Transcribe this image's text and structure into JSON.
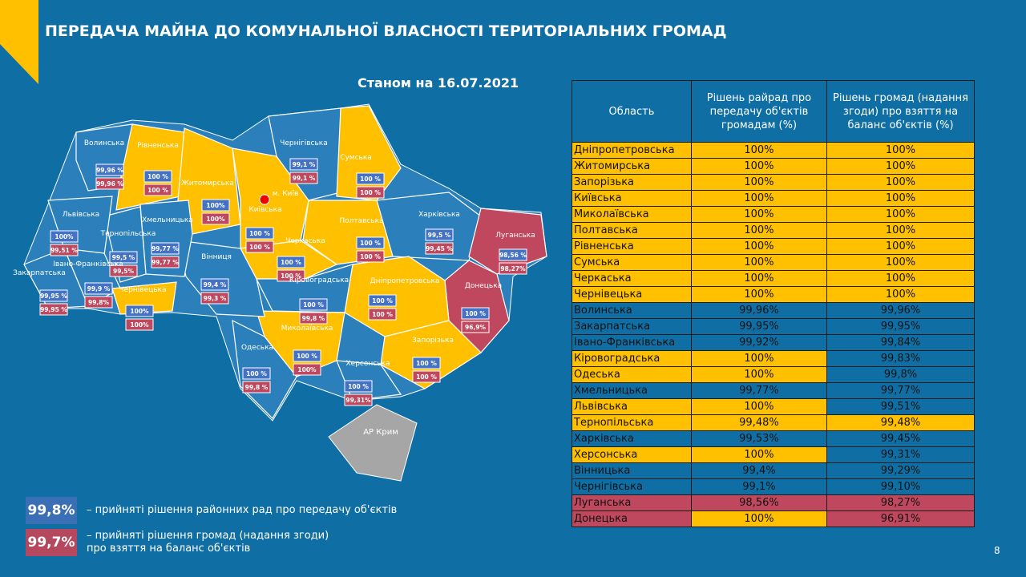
{
  "header": {
    "title": "ПЕРЕДАЧА МАЙНА ДО КОМУНАЛЬНОЇ ВЛАСНОСТІ ТЕРИТОРІАЛЬНИХ ГРОМАД",
    "date": "Станом на 16.07.2021",
    "page": "8"
  },
  "legend": [
    {
      "value": "99,8%",
      "lines": [
        "– прийняті рішення районних рад про передачу об'єктів"
      ],
      "color": "#3a6fb5"
    },
    {
      "value": "99,7%",
      "lines": [
        "– прийняті рішення громад (надання згоди)",
        "про взяття на баланс об'єктів"
      ],
      "color": "#b5475e"
    }
  ],
  "map": {
    "capital": "м. Київ",
    "crimea": "АР Крим",
    "regions": [
      {
        "name": "Волинська",
        "v1": "99,96 %",
        "v2": "99,96 %",
        "fill": "#2b7fba"
      },
      {
        "name": "Рівненська",
        "v1": "100 %",
        "v2": "100 %",
        "fill": "#ffc000"
      },
      {
        "name": "Житомирська",
        "v1": "100%",
        "v2": "100%",
        "fill": "#ffc000"
      },
      {
        "name": "Київська",
        "v1": "100 %",
        "v2": "100 %",
        "fill": "#ffc000"
      },
      {
        "name": "Чернігівська",
        "v1": "99,1 %",
        "v2": "99,1 %",
        "fill": "#2b7fba"
      },
      {
        "name": "Сумська",
        "v1": "100 %",
        "v2": "100 %",
        "fill": "#ffc000"
      },
      {
        "name": "Харківська",
        "v1": "99,5 %",
        "v2": "99,45 %",
        "fill": "#2b7fba"
      },
      {
        "name": "Луганська",
        "v1": "98,56 %",
        "v2": "98,27%",
        "fill": "#c0485e"
      },
      {
        "name": "Донецька",
        "v1": "100 %",
        "v2": "96,9%",
        "fill": "#c0485e"
      },
      {
        "name": "Полтавська",
        "v1": "100 %",
        "v2": "100 %",
        "fill": "#ffc000"
      },
      {
        "name": "Черкаська",
        "v1": "100 %",
        "v2": "100 %",
        "fill": "#ffc000"
      },
      {
        "name": "Дніпропетровська",
        "v1": "100 %",
        "v2": "100 %",
        "fill": "#ffc000"
      },
      {
        "name": "Запорізька",
        "v1": "100 %",
        "v2": "100 %",
        "fill": "#ffc000"
      },
      {
        "name": "Кіровоградська",
        "v1": "100 %",
        "v2": "99,8 %",
        "fill": "#2b7fba"
      },
      {
        "name": "Миколаївська",
        "v1": "100 %",
        "v2": "100%",
        "fill": "#ffc000"
      },
      {
        "name": "Херсонська",
        "v1": "100 %",
        "v2": "99,31%",
        "fill": "#2b7fba"
      },
      {
        "name": "Одеська",
        "v1": "100 %",
        "v2": "99,8 %",
        "fill": "#2b7fba"
      },
      {
        "name": "Вінниця",
        "v1": "99,4 %",
        "v2": "99,3 %",
        "fill": "#2b7fba"
      },
      {
        "name": "Хмельницька",
        "v1": "99,77 %",
        "v2": "99,77 %",
        "fill": "#2b7fba"
      },
      {
        "name": "Тернопільська",
        "v1": "99,5 %",
        "v2": "99,5%",
        "fill": "#2b7fba"
      },
      {
        "name": "Львівська",
        "v1": "100%",
        "v2": "99,51 %",
        "fill": "#2b7fba"
      },
      {
        "name": "Івано-Франківська",
        "v1": "99,9 %",
        "v2": "99,8%",
        "fill": "#2b7fba"
      },
      {
        "name": "Закарпатська",
        "v1": "99,95 %",
        "v2": "99,95 %",
        "fill": "#2b7fba"
      },
      {
        "name": "Чернівецька",
        "v1": "100%",
        "v2": "100%",
        "fill": "#ffc000"
      }
    ]
  },
  "table": {
    "headers": [
      "Область",
      "Рішень райрад про передачу об'єктів громадам (%)",
      "Рішень громад (надання згоди) про взяття на баланс об'єктів (%)"
    ],
    "rows": [
      [
        "Дніпропетровська",
        "100%",
        "100%"
      ],
      [
        "Житомирська",
        "100%",
        "100%"
      ],
      [
        "Запорізька",
        "100%",
        "100%"
      ],
      [
        "Київська",
        "100%",
        "100%"
      ],
      [
        "Миколаївська",
        "100%",
        "100%"
      ],
      [
        "Полтавська",
        "100%",
        "100%"
      ],
      [
        "Рівненська",
        "100%",
        "100%"
      ],
      [
        "Сумська",
        "100%",
        "100%"
      ],
      [
        "Черкаська",
        "100%",
        "100%"
      ],
      [
        "Чернівецька",
        "100%",
        "100%"
      ],
      [
        "Волинська",
        "99,96%",
        "99,96%"
      ],
      [
        "Закарпатська",
        "99,95%",
        "99,95%"
      ],
      [
        "Івано-Франківська",
        "99,92%",
        "99,84%"
      ],
      [
        "Кіровоградська",
        "100%",
        "99,83%"
      ],
      [
        "Одеська",
        "100%",
        "99,8%"
      ],
      [
        "Хмельницька",
        "99,77%",
        "99,77%"
      ],
      [
        "Львівська",
        "100%",
        "99,51%"
      ],
      [
        "Тернопільська",
        "99,48%",
        "99,48%"
      ],
      [
        "Харківська",
        "99,53%",
        "99,45%"
      ],
      [
        "Херсонська",
        "100%",
        "99,31%"
      ],
      [
        "Вінницька",
        "99,4%",
        "99,29%"
      ],
      [
        "Чернігівська",
        "99,1%",
        "99,10%"
      ],
      [
        "Луганська",
        "98,56%",
        "98,27%"
      ],
      [
        "Донецька",
        "100%",
        "96,91%"
      ]
    ],
    "fills": [
      [
        "#ffc000",
        "#ffc000",
        "#ffc000"
      ],
      [
        "#ffc000",
        "#ffc000",
        "#ffc000"
      ],
      [
        "#ffc000",
        "#ffc000",
        "#ffc000"
      ],
      [
        "#ffc000",
        "#ffc000",
        "#ffc000"
      ],
      [
        "#ffc000",
        "#ffc000",
        "#ffc000"
      ],
      [
        "#ffc000",
        "#ffc000",
        "#ffc000"
      ],
      [
        "#ffc000",
        "#ffc000",
        "#ffc000"
      ],
      [
        "#ffc000",
        "#ffc000",
        "#ffc000"
      ],
      [
        "#ffc000",
        "#ffc000",
        "#ffc000"
      ],
      [
        "#ffc000",
        "#ffc000",
        "#ffc000"
      ],
      [
        "#0f6fa5",
        "#0f6fa5",
        "#0f6fa5"
      ],
      [
        "#0f6fa5",
        "#0f6fa5",
        "#0f6fa5"
      ],
      [
        "#0f6fa5",
        "#0f6fa5",
        "#0f6fa5"
      ],
      [
        "#ffc000",
        "#ffc000",
        "#0f6fa5"
      ],
      [
        "#ffc000",
        "#ffc000",
        "#0f6fa5"
      ],
      [
        "#0f6fa5",
        "#0f6fa5",
        "#0f6fa5"
      ],
      [
        "#ffc000",
        "#ffc000",
        "#0f6fa5"
      ],
      [
        "#ffc000",
        "#ffc000",
        "#ffc000"
      ],
      [
        "#0f6fa5",
        "#0f6fa5",
        "#0f6fa5"
      ],
      [
        "#ffc000",
        "#ffc000",
        "#0f6fa5"
      ],
      [
        "#0f6fa5",
        "#0f6fa5",
        "#0f6fa5"
      ],
      [
        "#0f6fa5",
        "#0f6fa5",
        "#0f6fa5"
      ],
      [
        "#c0485e",
        "#c0485e",
        "#c0485e"
      ],
      [
        "#c0485e",
        "#ffc000",
        "#c0485e"
      ]
    ]
  }
}
